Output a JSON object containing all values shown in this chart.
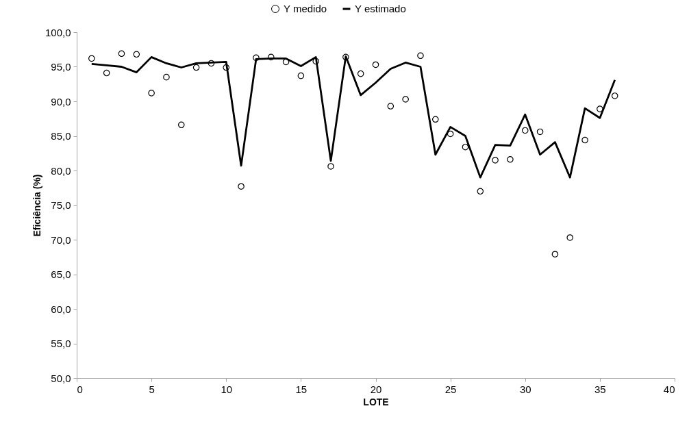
{
  "chart_data": {
    "type": "line",
    "xlabel": "LOTE",
    "ylabel": "Eficiência (%)",
    "x": [
      1,
      2,
      3,
      4,
      5,
      6,
      7,
      8,
      9,
      10,
      11,
      12,
      13,
      14,
      15,
      16,
      17,
      18,
      19,
      20,
      21,
      22,
      23,
      24,
      25,
      26,
      27,
      28,
      29,
      30,
      31,
      32,
      33,
      34,
      35,
      36
    ],
    "series": [
      {
        "name": "Y medido",
        "type": "scatter",
        "marker": "circle",
        "color": "#000000",
        "values": [
          96.2,
          94.1,
          96.9,
          96.8,
          91.2,
          93.5,
          86.6,
          94.9,
          95.5,
          94.9,
          77.7,
          96.3,
          96.4,
          95.7,
          93.7,
          95.8,
          80.6,
          96.4,
          94.0,
          95.3,
          89.3,
          90.3,
          96.6,
          87.4,
          85.3,
          83.4,
          77.0,
          81.5,
          81.6,
          85.8,
          85.6,
          67.9,
          70.3,
          84.4,
          88.9,
          90.8
        ]
      },
      {
        "name": "Y estimado",
        "color": "#000000",
        "values": [
          95.4,
          95.2,
          95.0,
          94.2,
          96.4,
          95.5,
          94.9,
          95.5,
          95.6,
          95.7,
          80.7,
          96.1,
          96.2,
          96.2,
          95.1,
          96.4,
          81.4,
          96.5,
          90.9,
          92.7,
          94.7,
          95.6,
          95.0,
          82.3,
          86.3,
          85.0,
          79.0,
          83.7,
          83.6,
          88.1,
          82.3,
          84.1,
          79.0,
          89.0,
          87.6,
          93.1
        ]
      }
    ],
    "xlim": [
      0,
      40
    ],
    "xticks": [
      0,
      5,
      10,
      15,
      20,
      25,
      30,
      35,
      40
    ],
    "ylim": [
      50,
      100
    ],
    "yticks": [
      {
        "value": 50,
        "label": "50,0"
      },
      {
        "value": 55,
        "label": "55,0"
      },
      {
        "value": 60,
        "label": "60,0"
      },
      {
        "value": 65,
        "label": "65,0"
      },
      {
        "value": 70,
        "label": "70,0"
      },
      {
        "value": 75,
        "label": "75,0"
      },
      {
        "value": 80,
        "label": "80,0"
      },
      {
        "value": 85,
        "label": "85,0"
      },
      {
        "value": 90,
        "label": "90,0"
      },
      {
        "value": 95,
        "label": "95,0"
      },
      {
        "value": 100,
        "label": "100,0"
      }
    ],
    "grid": false,
    "legend": "top"
  }
}
